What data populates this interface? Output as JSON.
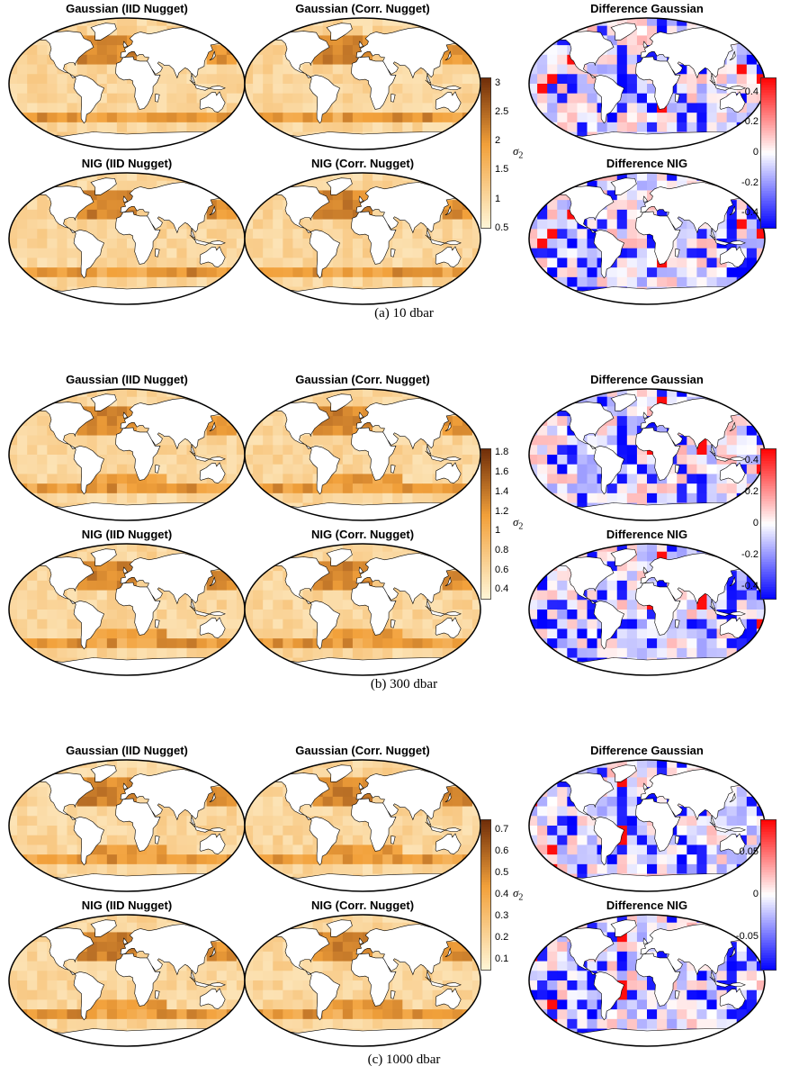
{
  "figure": {
    "colorbar_label": "σ",
    "colorbar_label_sub": "2",
    "colors": {
      "seq_low": "#fff6d8",
      "seq_mid": "#f2a13b",
      "seq_high": "#6e2c08",
      "div_neg": "#0000ff",
      "div_zero": "#ffffff",
      "div_pos": "#ff0000",
      "land": "#ffffff",
      "coast": "#000000"
    },
    "rows": [
      {
        "caption": "(a) 10 dbar",
        "titles": [
          "Gaussian (IID Nugget)",
          "Gaussian (Corr. Nugget)",
          "NIG (IID Nugget)",
          "NIG (Corr. Nugget)",
          "Difference Gaussian",
          "Difference NIG"
        ],
        "seq_ticks": [
          "0.5",
          "1",
          "1.5",
          "2",
          "2.5",
          "3"
        ],
        "seq_range": [
          0.5,
          3.1
        ],
        "div_ticks": [
          "-0.4",
          "-0.2",
          "0",
          "0.2",
          "0.4"
        ],
        "div_range": [
          -0.5,
          0.5
        ]
      },
      {
        "caption": "(b) 300 dbar",
        "titles": [
          "Gaussian (IID Nugget)",
          "Gaussian (Corr. Nugget)",
          "NIG (IID Nugget)",
          "NIG (Corr. Nugget)",
          "Difference Gaussian",
          "Difference NIG"
        ],
        "seq_ticks": [
          "0.4",
          "0.6",
          "0.8",
          "1",
          "1.2",
          "1.4",
          "1.6",
          "1.8"
        ],
        "seq_range": [
          0.3,
          1.85
        ],
        "div_ticks": [
          "-0.4",
          "-0.2",
          "0",
          "0.2",
          "0.4"
        ],
        "div_range": [
          -0.48,
          0.48
        ]
      },
      {
        "caption": "(c) 1000 dbar",
        "titles": [
          "Gaussian (IID Nugget)",
          "Gaussian (Corr. Nugget)",
          "NIG (IID Nugget)",
          "NIG (Corr. Nugget)",
          "Difference Gaussian",
          "Difference NIG"
        ],
        "seq_ticks": [
          "0.1",
          "0.2",
          "0.3",
          "0.4",
          "0.5",
          "0.6",
          "0.7"
        ],
        "seq_range": [
          0.05,
          0.75
        ],
        "div_ticks": [
          "-0.05",
          "0",
          "0.05"
        ],
        "div_range": [
          -0.09,
          0.09
        ]
      }
    ]
  }
}
